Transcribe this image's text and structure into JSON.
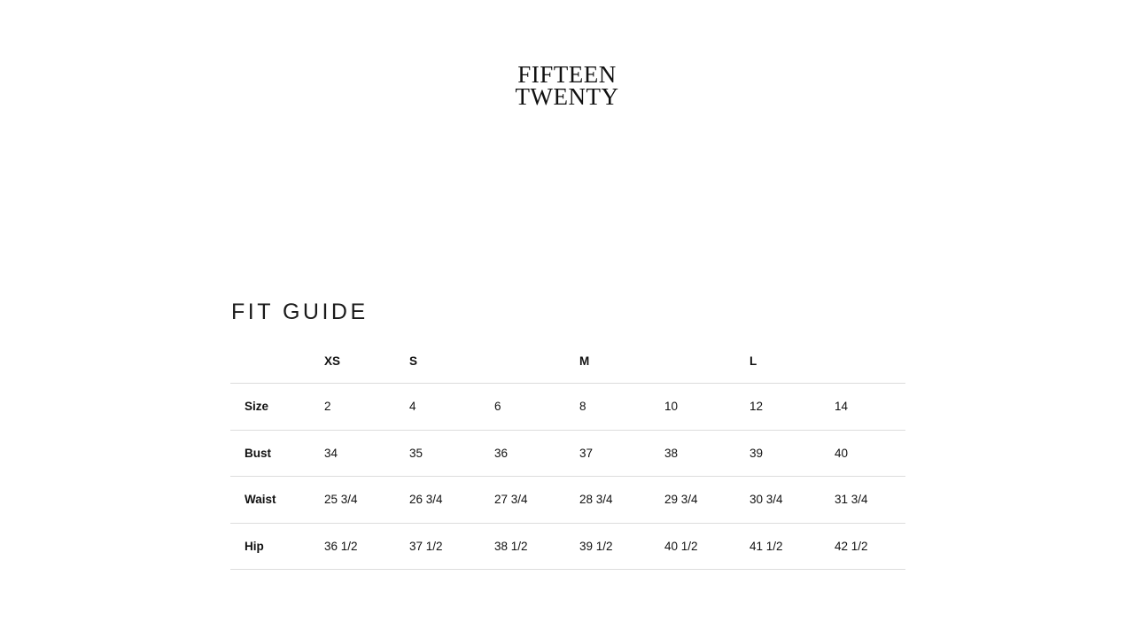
{
  "logo": {
    "line1": "FIFTEEN",
    "line2": "TWENTY"
  },
  "title": "FIT GUIDE",
  "table": {
    "size_groups": [
      "XS",
      "S",
      "",
      "M",
      "",
      "L",
      ""
    ],
    "rows": [
      {
        "label": "Size",
        "values": [
          "2",
          "4",
          "6",
          "8",
          "10",
          "12",
          "14"
        ]
      },
      {
        "label": "Bust",
        "values": [
          "34",
          "35",
          "36",
          "37",
          "38",
          "39",
          "40"
        ]
      },
      {
        "label": "Waist",
        "values": [
          "25 3/4",
          "26 3/4",
          "27 3/4",
          "28 3/4",
          "29 3/4",
          "30 3/4",
          "31 3/4"
        ]
      },
      {
        "label": "Hip",
        "values": [
          "36 1/2",
          "37 1/2",
          "38 1/2",
          "39 1/2",
          "40 1/2",
          "41 1/2",
          "42 1/2"
        ]
      }
    ]
  }
}
